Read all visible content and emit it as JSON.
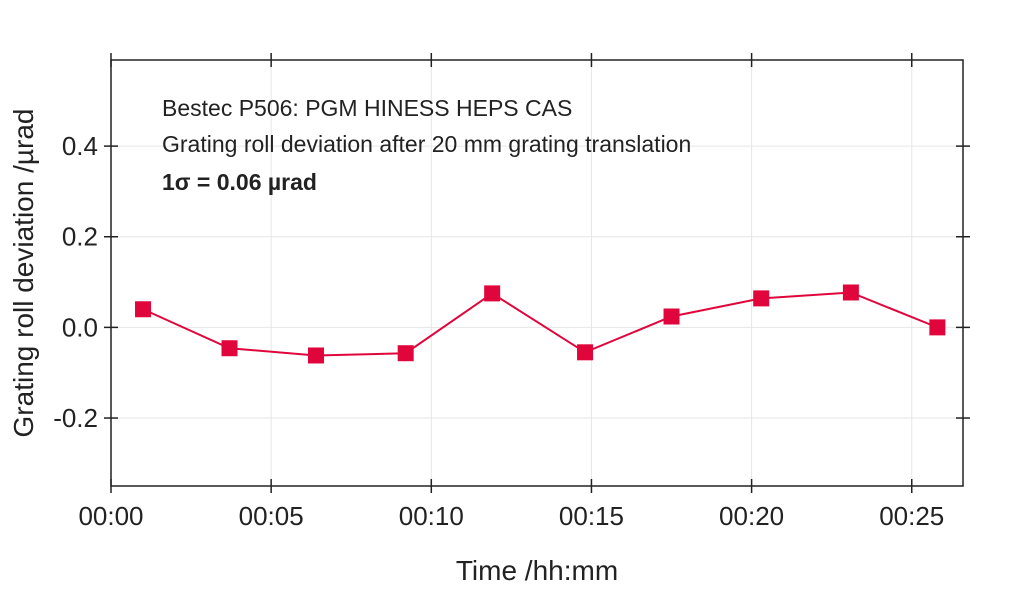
{
  "chart_data": {
    "type": "line",
    "annotations": [
      "Bestec P506: PGM HINESS HEPS CAS",
      "Grating roll deviation after 20 mm grating translation",
      "1σ = 0.06 µrad"
    ],
    "xlabel": "Time /hh:mm",
    "ylabel": "Grating roll deviation /µrad",
    "xlim_minutes": [
      0,
      26.6
    ],
    "ylim": [
      -0.35,
      0.59
    ],
    "x_ticks": [
      {
        "minutes": 0,
        "label": "00:00"
      },
      {
        "minutes": 5,
        "label": "00:05"
      },
      {
        "minutes": 10,
        "label": "00:10"
      },
      {
        "minutes": 15,
        "label": "00:15"
      },
      {
        "minutes": 20,
        "label": "00:20"
      },
      {
        "minutes": 25,
        "label": "00:25"
      }
    ],
    "y_ticks": [
      {
        "value": -0.2,
        "label": "-0.2"
      },
      {
        "value": 0.0,
        "label": "0.0"
      },
      {
        "value": 0.2,
        "label": "0.2"
      },
      {
        "value": 0.4,
        "label": "0.4"
      }
    ],
    "grid": true,
    "series": [
      {
        "color": "#e0063c",
        "marker": "square",
        "x_minutes": [
          1.0,
          3.7,
          6.4,
          9.2,
          11.9,
          14.8,
          17.5,
          20.3,
          23.1,
          25.8
        ],
        "y": [
          0.04,
          -0.046,
          -0.062,
          -0.057,
          0.075,
          -0.055,
          0.024,
          0.064,
          0.077,
          0.0
        ]
      }
    ]
  }
}
